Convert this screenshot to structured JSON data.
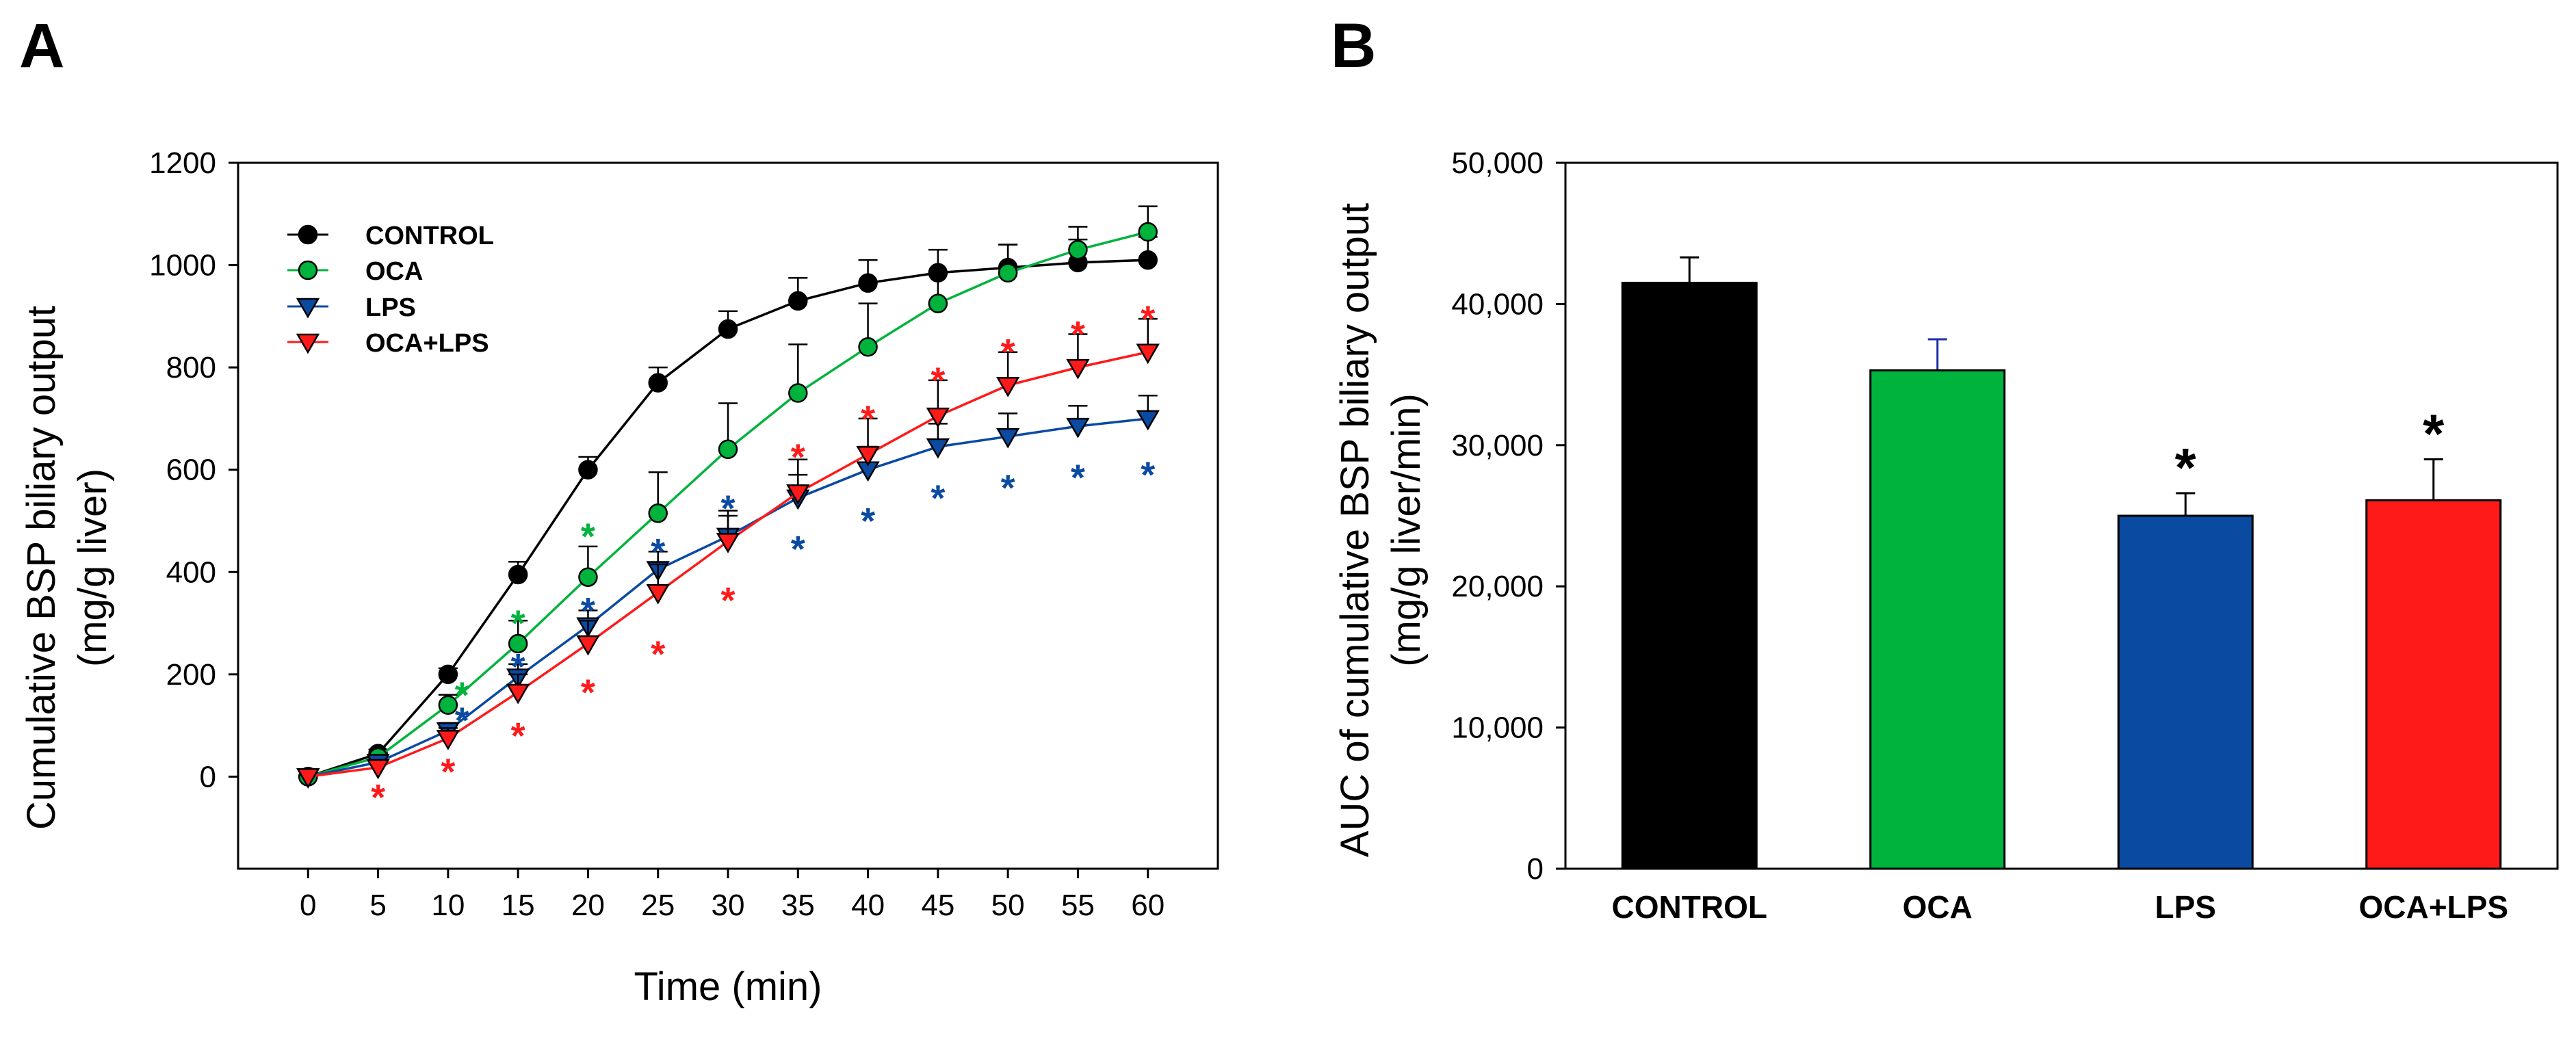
{
  "colors": {
    "control": "#000000",
    "oca": "#00b33c",
    "lps": "#0a4aa1",
    "oca_lps": "#ff1a1a",
    "axis": "#000000"
  },
  "panel_labels": {
    "a": "A",
    "b": "B"
  },
  "chart_data": [
    {
      "type": "line",
      "panel": "A",
      "title": "",
      "xlabel": "Time (min)",
      "ylabel": "Cumulative BSP biliary output",
      "ylabel2": "(mg/g liver)",
      "x": [
        0,
        5,
        10,
        15,
        20,
        25,
        30,
        35,
        40,
        45,
        50,
        55,
        60
      ],
      "x_ticks": [
        "0",
        "5",
        "10",
        "15",
        "20",
        "25",
        "30",
        "35",
        "40",
        "45",
        "50",
        "55",
        "60"
      ],
      "xlim": [
        -5,
        65
      ],
      "ylim": [
        -180,
        1200
      ],
      "y_ticks": [
        "0",
        "200",
        "400",
        "600",
        "800",
        "1000",
        "1200"
      ],
      "y_tick_values": [
        0,
        200,
        400,
        600,
        800,
        1000,
        1200
      ],
      "legend_position": "top-left",
      "series": [
        {
          "name": "CONTROL",
          "key": "control",
          "marker": "circle",
          "values": [
            0,
            45,
            200,
            395,
            600,
            770,
            875,
            930,
            965,
            985,
            995,
            1005,
            1010
          ],
          "errors": [
            0,
            8,
            12,
            25,
            25,
            30,
            35,
            45,
            45,
            45,
            45,
            45,
            45
          ]
        },
        {
          "name": "OCA",
          "key": "oca",
          "marker": "circle",
          "values": [
            0,
            38,
            140,
            260,
            390,
            515,
            640,
            750,
            840,
            925,
            985,
            1030,
            1065
          ],
          "errors": [
            0,
            10,
            20,
            45,
            60,
            80,
            90,
            95,
            85,
            60,
            55,
            45,
            50
          ]
        },
        {
          "name": "LPS",
          "key": "lps",
          "marker": "triangle-down",
          "values": [
            0,
            28,
            90,
            195,
            295,
            405,
            470,
            545,
            600,
            645,
            665,
            685,
            700
          ],
          "errors": [
            0,
            8,
            15,
            25,
            30,
            35,
            40,
            45,
            45,
            45,
            45,
            40,
            45
          ]
        },
        {
          "name": "OCA+LPS",
          "key": "oca_lps",
          "marker": "triangle-down",
          "values": [
            0,
            18,
            75,
            165,
            260,
            360,
            460,
            555,
            630,
            705,
            765,
            800,
            830
          ],
          "errors": [
            0,
            10,
            20,
            35,
            45,
            55,
            60,
            65,
            70,
            70,
            65,
            65,
            65
          ]
        }
      ],
      "annotations": [
        {
          "text": "*",
          "series": "oca_lps",
          "x": 5,
          "y": -30
        },
        {
          "text": "*",
          "series": "oca_lps",
          "x": 10,
          "y": 20
        },
        {
          "text": "*",
          "series": "lps",
          "x": 11,
          "y": 120
        },
        {
          "text": "*",
          "series": "oca",
          "x": 11,
          "y": 170
        },
        {
          "text": "*",
          "series": "oca_lps",
          "x": 15,
          "y": 90
        },
        {
          "text": "*",
          "series": "lps",
          "x": 15,
          "y": 225
        },
        {
          "text": "*",
          "series": "oca",
          "x": 15,
          "y": 310
        },
        {
          "text": "*",
          "series": "oca_lps",
          "x": 20,
          "y": 175
        },
        {
          "text": "*",
          "series": "lps",
          "x": 20,
          "y": 335
        },
        {
          "text": "*",
          "series": "oca",
          "x": 20,
          "y": 480
        },
        {
          "text": "*",
          "series": "oca_lps",
          "x": 25,
          "y": 250
        },
        {
          "text": "*",
          "series": "lps",
          "x": 25,
          "y": 450
        },
        {
          "text": "*",
          "series": "oca_lps",
          "x": 30,
          "y": 355
        },
        {
          "text": "*",
          "series": "lps",
          "x": 30,
          "y": 535
        },
        {
          "text": "*",
          "series": "lps",
          "x": 35,
          "y": 455
        },
        {
          "text": "*",
          "series": "oca_lps",
          "x": 35,
          "y": 635
        },
        {
          "text": "*",
          "series": "lps",
          "x": 40,
          "y": 510
        },
        {
          "text": "*",
          "series": "oca_lps",
          "x": 40,
          "y": 710
        },
        {
          "text": "*",
          "series": "lps",
          "x": 45,
          "y": 555
        },
        {
          "text": "*",
          "series": "oca_lps",
          "x": 45,
          "y": 785
        },
        {
          "text": "*",
          "series": "lps",
          "x": 50,
          "y": 575
        },
        {
          "text": "*",
          "series": "oca_lps",
          "x": 50,
          "y": 840
        },
        {
          "text": "*",
          "series": "lps",
          "x": 55,
          "y": 595
        },
        {
          "text": "*",
          "series": "oca_lps",
          "x": 55,
          "y": 875
        },
        {
          "text": "*",
          "series": "lps",
          "x": 60,
          "y": 600
        },
        {
          "text": "*",
          "series": "oca_lps",
          "x": 60,
          "y": 905
        }
      ]
    },
    {
      "type": "bar",
      "panel": "B",
      "title": "",
      "xlabel": "",
      "ylabel": "AUC of cumulative BSP biliary output",
      "ylabel2": "(mg/g liver/min)",
      "categories": [
        "CONTROL",
        "OCA",
        "LPS",
        "OCA+LPS"
      ],
      "keys": [
        "control",
        "oca",
        "lps",
        "oca_lps"
      ],
      "values": [
        41500,
        35300,
        25000,
        26100
      ],
      "errors": [
        1800,
        2200,
        1600,
        2900
      ],
      "significance": [
        "",
        "",
        "*",
        "*"
      ],
      "ylim": [
        0,
        50000
      ],
      "y_ticks": [
        "0",
        "10,000",
        "20,000",
        "30,000",
        "40,000",
        "50,000"
      ],
      "y_tick_values": [
        0,
        10000,
        20000,
        30000,
        40000,
        50000
      ]
    }
  ]
}
